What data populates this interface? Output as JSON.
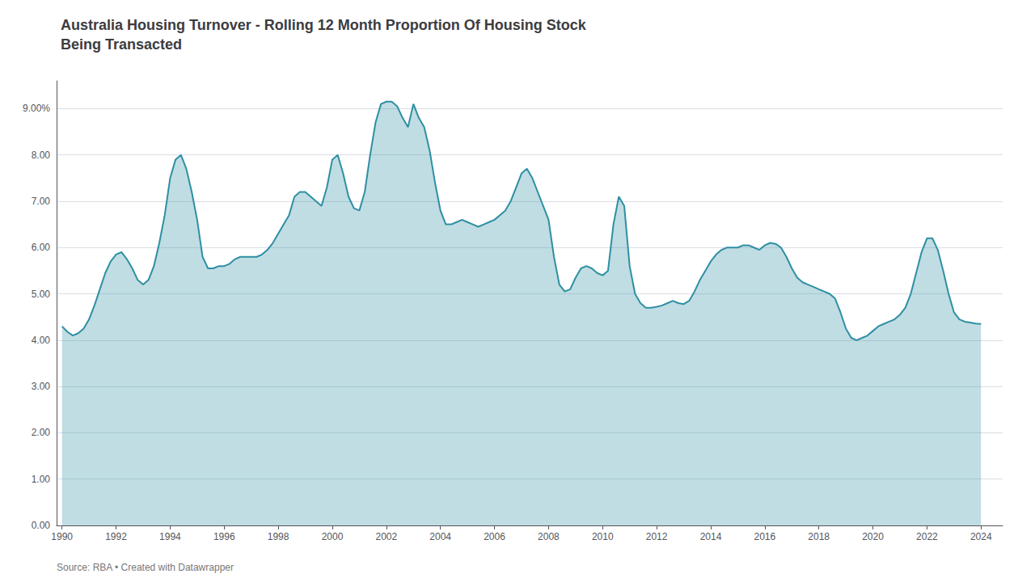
{
  "chart_data": {
    "type": "area",
    "title": "Australia Housing Turnover - Rolling 12 Month Proportion Of Housing Stock\nBeing Transacted",
    "source": "Source: RBA • Created with Datawrapper",
    "color": "#2e8fa3",
    "grid": true,
    "xlim": [
      1989.8,
      2024.8
    ],
    "xticks": [
      1990,
      1992,
      1994,
      1996,
      1998,
      2000,
      2002,
      2004,
      2006,
      2008,
      2010,
      2012,
      2014,
      2016,
      2018,
      2020,
      2022,
      2024
    ],
    "ylim": [
      0,
      9.6
    ],
    "yticks": [
      {
        "value": 0.0,
        "label": "0.00"
      },
      {
        "value": 1.0,
        "label": "1.00"
      },
      {
        "value": 2.0,
        "label": "2.00"
      },
      {
        "value": 3.0,
        "label": "3.00"
      },
      {
        "value": 4.0,
        "label": "4.00"
      },
      {
        "value": 5.0,
        "label": "5.00"
      },
      {
        "value": 6.0,
        "label": "6.00"
      },
      {
        "value": 7.0,
        "label": "7.00"
      },
      {
        "value": 8.0,
        "label": "8.00"
      },
      {
        "value": 9.0,
        "label": "9.00%"
      }
    ],
    "x": [
      1990.0,
      1990.2,
      1990.4,
      1990.6,
      1990.8,
      1991.0,
      1991.2,
      1991.4,
      1991.6,
      1991.8,
      1992.0,
      1992.2,
      1992.4,
      1992.6,
      1992.8,
      1993.0,
      1993.2,
      1993.4,
      1993.6,
      1993.8,
      1994.0,
      1994.2,
      1994.4,
      1994.6,
      1994.8,
      1995.0,
      1995.2,
      1995.4,
      1995.6,
      1995.8,
      1996.0,
      1996.2,
      1996.4,
      1996.6,
      1996.8,
      1997.0,
      1997.2,
      1997.4,
      1997.6,
      1997.8,
      1998.0,
      1998.2,
      1998.4,
      1998.6,
      1998.8,
      1999.0,
      1999.2,
      1999.4,
      1999.6,
      1999.8,
      2000.0,
      2000.2,
      2000.4,
      2000.6,
      2000.8,
      2001.0,
      2001.2,
      2001.4,
      2001.6,
      2001.8,
      2002.0,
      2002.2,
      2002.4,
      2002.6,
      2002.8,
      2003.0,
      2003.2,
      2003.4,
      2003.6,
      2003.8,
      2004.0,
      2004.2,
      2004.4,
      2004.6,
      2004.8,
      2005.0,
      2005.2,
      2005.4,
      2005.6,
      2005.8,
      2006.0,
      2006.2,
      2006.4,
      2006.6,
      2006.8,
      2007.0,
      2007.2,
      2007.4,
      2007.6,
      2007.8,
      2008.0,
      2008.2,
      2008.4,
      2008.6,
      2008.8,
      2009.0,
      2009.2,
      2009.4,
      2009.6,
      2009.8,
      2010.0,
      2010.2,
      2010.4,
      2010.6,
      2010.8,
      2011.0,
      2011.2,
      2011.4,
      2011.6,
      2011.8,
      2012.0,
      2012.2,
      2012.4,
      2012.6,
      2012.8,
      2013.0,
      2013.2,
      2013.4,
      2013.6,
      2013.8,
      2014.0,
      2014.2,
      2014.4,
      2014.6,
      2014.8,
      2015.0,
      2015.2,
      2015.4,
      2015.6,
      2015.8,
      2016.0,
      2016.2,
      2016.4,
      2016.6,
      2016.8,
      2017.0,
      2017.2,
      2017.4,
      2017.6,
      2017.8,
      2018.0,
      2018.2,
      2018.4,
      2018.6,
      2018.8,
      2019.0,
      2019.2,
      2019.4,
      2019.6,
      2019.8,
      2020.0,
      2020.2,
      2020.4,
      2020.6,
      2020.8,
      2021.0,
      2021.2,
      2021.4,
      2021.6,
      2021.8,
      2022.0,
      2022.2,
      2022.4,
      2022.6,
      2022.8,
      2023.0,
      2023.2,
      2023.4,
      2023.6,
      2023.8,
      2024.0
    ],
    "values": [
      4.3,
      4.18,
      4.1,
      4.15,
      4.25,
      4.45,
      4.75,
      5.1,
      5.45,
      5.7,
      5.85,
      5.9,
      5.75,
      5.55,
      5.3,
      5.2,
      5.3,
      5.6,
      6.1,
      6.7,
      7.5,
      7.9,
      8.0,
      7.7,
      7.2,
      6.6,
      5.8,
      5.55,
      5.55,
      5.6,
      5.6,
      5.65,
      5.75,
      5.8,
      5.8,
      5.8,
      5.8,
      5.85,
      5.95,
      6.1,
      6.3,
      6.5,
      6.7,
      7.1,
      7.2,
      7.2,
      7.1,
      7.0,
      6.9,
      7.3,
      7.9,
      8.0,
      7.6,
      7.1,
      6.85,
      6.8,
      7.2,
      8.0,
      8.7,
      9.1,
      9.15,
      9.15,
      9.05,
      8.8,
      8.6,
      9.1,
      8.8,
      8.6,
      8.1,
      7.4,
      6.8,
      6.5,
      6.5,
      6.55,
      6.6,
      6.55,
      6.5,
      6.45,
      6.5,
      6.55,
      6.6,
      6.7,
      6.8,
      7.0,
      7.3,
      7.6,
      7.7,
      7.5,
      7.2,
      6.9,
      6.6,
      5.8,
      5.2,
      5.05,
      5.1,
      5.35,
      5.55,
      5.6,
      5.55,
      5.45,
      5.4,
      5.5,
      6.5,
      7.1,
      6.9,
      5.6,
      5.0,
      4.8,
      4.7,
      4.7,
      4.72,
      4.75,
      4.8,
      4.85,
      4.8,
      4.78,
      4.85,
      5.05,
      5.3,
      5.5,
      5.7,
      5.85,
      5.95,
      6.0,
      6.0,
      6.0,
      6.05,
      6.05,
      6.0,
      5.95,
      6.05,
      6.1,
      6.08,
      6.0,
      5.8,
      5.55,
      5.35,
      5.25,
      5.2,
      5.15,
      5.1,
      5.05,
      5.0,
      4.9,
      4.6,
      4.25,
      4.05,
      4.0,
      4.05,
      4.1,
      4.2,
      4.3,
      4.35,
      4.4,
      4.45,
      4.55,
      4.7,
      5.0,
      5.45,
      5.9,
      6.2,
      6.2,
      5.95,
      5.5,
      5.0,
      4.6,
      4.45,
      4.4,
      4.38,
      4.36,
      4.35
    ]
  }
}
